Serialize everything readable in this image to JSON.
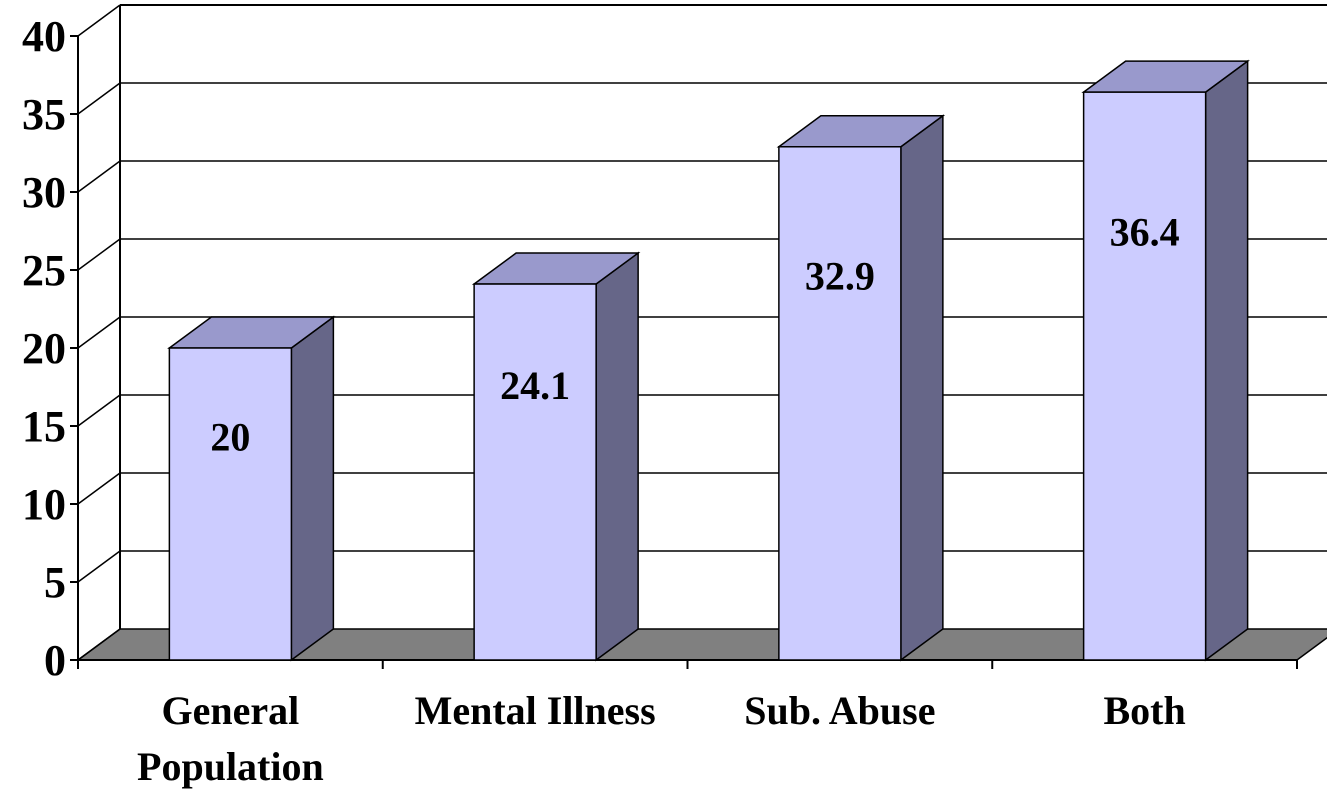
{
  "chart_data": {
    "type": "bar",
    "style": "3d",
    "categories": [
      "General Population",
      "Mental Illness",
      "Sub. Abuse",
      "Both"
    ],
    "category_lines": [
      [
        "General",
        "Population"
      ],
      [
        "Mental Illness"
      ],
      [
        "Sub. Abuse"
      ],
      [
        "Both"
      ]
    ],
    "values": [
      20,
      24.1,
      32.9,
      36.4
    ],
    "data_labels": [
      "20",
      "24.1",
      "32.9",
      "36.4"
    ],
    "ylim": [
      0,
      40
    ],
    "yticks": [
      "0",
      "5",
      "10",
      "15",
      "20",
      "25",
      "30",
      "35",
      "40"
    ],
    "grid": true,
    "legend": "none",
    "colors": {
      "bar_front": "#CCCCFF",
      "bar_top": "#9999CC",
      "bar_side": "#666688",
      "floor": "#808080",
      "grid": "#000000"
    }
  }
}
